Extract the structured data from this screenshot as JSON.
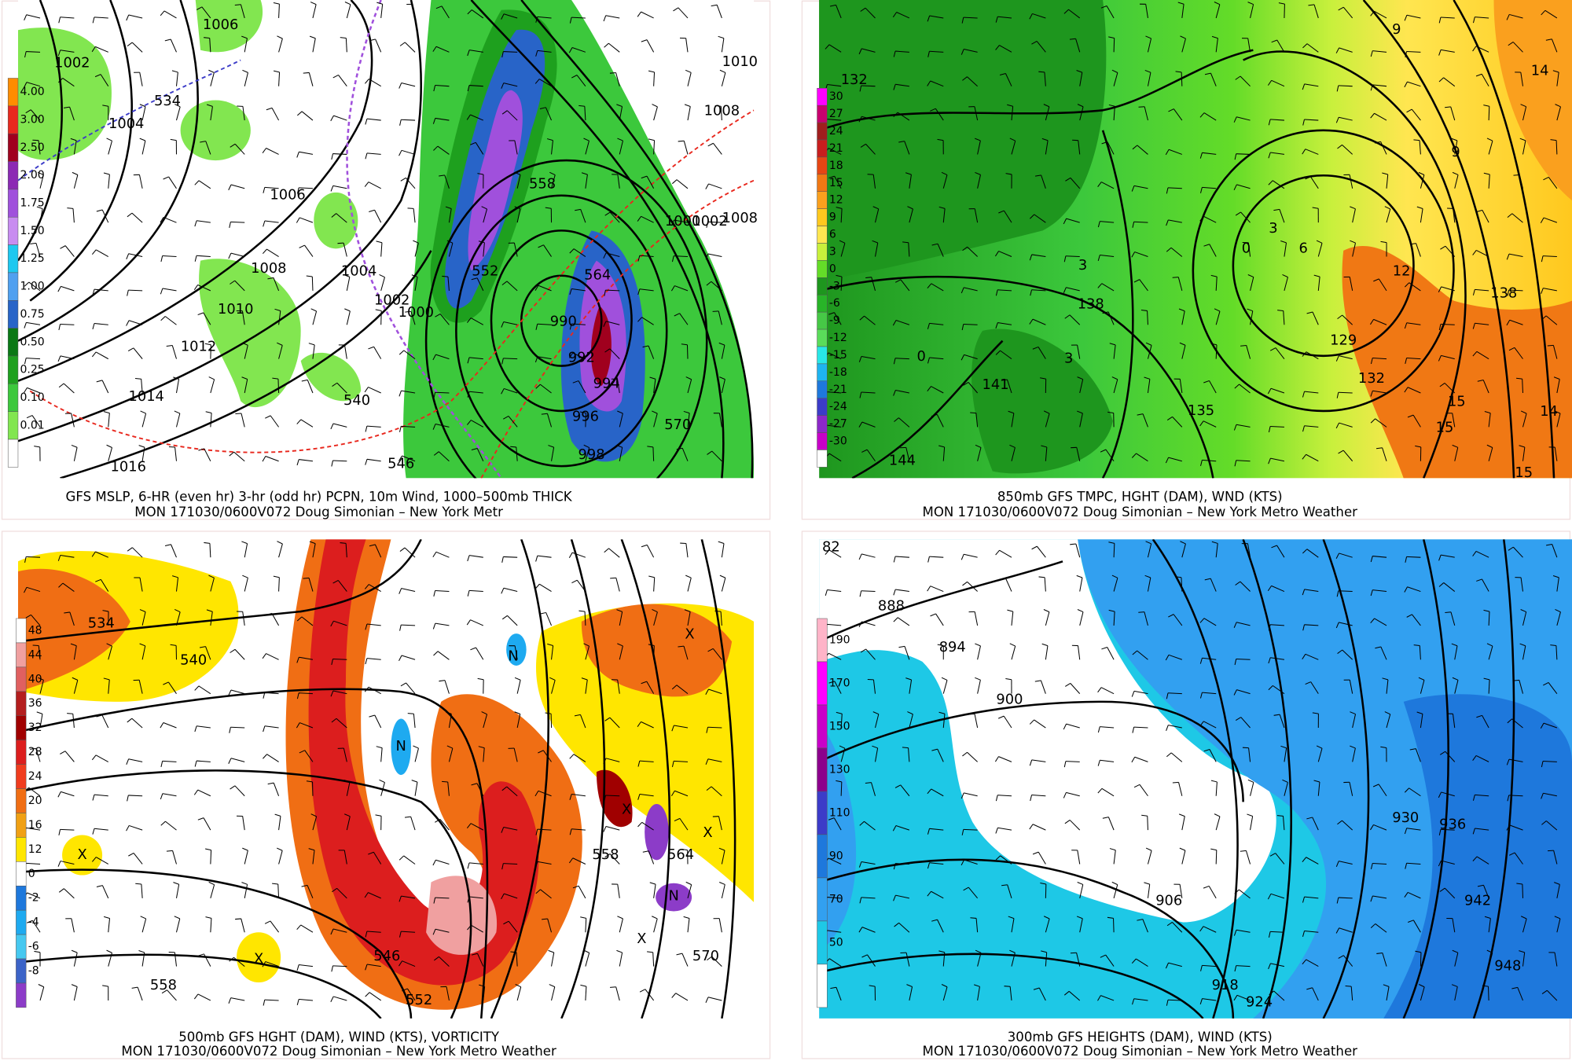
{
  "panels": [
    {
      "caption": [
        "GFS MSLP, 6-HR (even hr) 3-hr (odd hr) PCPN, 10m Wind, 1000–500mb THICK",
        "MON 171030/0600V072 Doug Simonian – New York Metr"
      ],
      "colorbar": {
        "labels": [
          "4.00",
          "3.00",
          "2.50",
          "2.00",
          "1.75",
          "1.50",
          "1.25",
          "1.00",
          "0.75",
          "0.50",
          "0.25",
          "0.10",
          "0.01"
        ],
        "colors": [
          "#ff8c00",
          "#e8281e",
          "#a0001e",
          "#8c28b4",
          "#a050dc",
          "#c88cf0",
          "#1ec8f0",
          "#50a0f0",
          "#2864c8",
          "#0a7814",
          "#1ea01e",
          "#3cc83c",
          "#82e650",
          "#ffffff"
        ]
      },
      "contour_labels": [
        "1006",
        "1002",
        "534",
        "1004",
        "1006",
        "1008",
        "1004",
        "1010",
        "1002",
        "1000",
        "1012",
        "1014",
        "1016",
        "540",
        "546",
        "558",
        "552",
        "564",
        "990",
        "992",
        "994",
        "996",
        "998",
        "570",
        "1008",
        "1010",
        "1000",
        "1002",
        "1008"
      ]
    },
    {
      "caption": [
        "850mb GFS TMPC, HGHT (DAM), WND (KTS)",
        "MON 171030/0600V072 Doug Simonian – New York Metro Weather"
      ],
      "colorbar": {
        "labels": [
          "30",
          "27",
          "24",
          "21",
          "18",
          "15",
          "12",
          "9",
          "6",
          "3",
          "0",
          "-3",
          "-6",
          "-9",
          "-12",
          "-15",
          "-18",
          "-21",
          "-24",
          "-27",
          "-30"
        ],
        "colors": [
          "#ff00ff",
          "#c8006e",
          "#a01e1e",
          "#c81e1e",
          "#e64614",
          "#f07814",
          "#faa01e",
          "#ffc81e",
          "#ffe650",
          "#c8f03c",
          "#64dc28",
          "#1e961e",
          "#28b428",
          "#46c846",
          "#5adc5a",
          "#28e6e6",
          "#1eb4f0",
          "#1e78dc",
          "#3c3cc8",
          "#8c28c8",
          "#c800c8",
          "#ffffff"
        ]
      },
      "contour_labels": [
        "132",
        "9",
        "14",
        "9",
        "3",
        "0",
        "6",
        "12",
        "138",
        "138",
        "3",
        "3",
        "0",
        "141",
        "129",
        "132",
        "15",
        "15",
        "135",
        "144",
        "14",
        "15"
      ]
    },
    {
      "caption": [
        "500mb GFS HGHT (DAM), WIND (KTS), VORTICITY",
        "MON 171030/0600V072 Doug Simonian – New York Metro Weather"
      ],
      "colorbar": {
        "labels": [
          "48",
          "44",
          "40",
          "36",
          "32",
          "28",
          "24",
          "20",
          "16",
          "12",
          "0",
          "-2",
          "-4",
          "-6",
          "-8"
        ],
        "colors": [
          "#ffffff",
          "#f0a0a0",
          "#e06060",
          "#b41e1e",
          "#a00000",
          "#dc1e1e",
          "#f03c1e",
          "#f06e14",
          "#f0a014",
          "#ffe600",
          "#ffffff",
          "#1e78dc",
          "#1eaaf0",
          "#46c8f0",
          "#3c64c8",
          "#8c3cc8"
        ]
      },
      "contour_labels": [
        "534",
        "540",
        "N",
        "X",
        "N",
        "X",
        "X",
        "558",
        "564",
        "X",
        "N",
        "X",
        "570",
        "X",
        "558",
        "546",
        "552"
      ]
    },
    {
      "caption": [
        "300mb GFS HEIGHTS (DAM), WIND (KTS)",
        "MON 171030/0600V072 Doug Simonian – New York Metro Weather"
      ],
      "colorbar": {
        "labels": [
          "190",
          "170",
          "150",
          "130",
          "110",
          "90",
          "70",
          "50"
        ],
        "colors": [
          "#ffb4c8",
          "#ff00ff",
          "#c800c8",
          "#8c008c",
          "#3c3cc8",
          "#1e78dc",
          "#32a0f0",
          "#1ec8e6",
          "#ffffff"
        ]
      },
      "contour_labels": [
        "82",
        "888",
        "894",
        "900",
        "930",
        "936",
        "942",
        "906",
        "948",
        "918",
        "924"
      ]
    }
  ]
}
